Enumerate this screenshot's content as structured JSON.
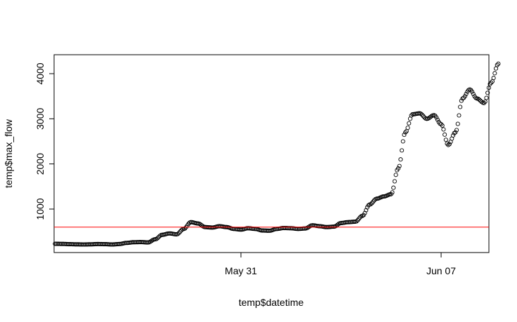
{
  "chart_data": {
    "type": "scatter",
    "xlabel": "temp$datetime",
    "ylabel": "temp$max_flow",
    "x_axis": {
      "type": "date",
      "range": [
        "2024-05-24T00:00",
        "2024-06-09T00:00"
      ]
    },
    "y_axis": {
      "range": [
        0,
        4400
      ]
    },
    "x_ticks": [
      {
        "date": "2024-05-31T00:00",
        "label": "May 31"
      },
      {
        "date": "2024-06-07T00:00",
        "label": "Jun 07"
      }
    ],
    "y_ticks": [
      {
        "value": 1000,
        "label": "1000"
      },
      {
        "value": 2000,
        "label": "2000"
      },
      {
        "value": 3000,
        "label": "3000"
      },
      {
        "value": 4000,
        "label": "4000"
      }
    ],
    "reference_line": {
      "y": 600,
      "color": "#ff0000"
    },
    "point_style": {
      "shape": "open-circle",
      "color": "#000000"
    },
    "grid": false,
    "points": [
      {
        "x": "2024-05-24T12:00",
        "y": 230
      },
      {
        "x": "2024-05-24T18:00",
        "y": 228
      },
      {
        "x": "2024-05-25T00:00",
        "y": 222
      },
      {
        "x": "2024-05-25T06:00",
        "y": 218
      },
      {
        "x": "2024-05-25T12:00",
        "y": 215
      },
      {
        "x": "2024-05-25T18:00",
        "y": 218
      },
      {
        "x": "2024-05-26T00:00",
        "y": 225
      },
      {
        "x": "2024-05-26T06:00",
        "y": 222
      },
      {
        "x": "2024-05-26T12:00",
        "y": 215
      },
      {
        "x": "2024-05-26T18:00",
        "y": 225
      },
      {
        "x": "2024-05-27T00:00",
        "y": 250
      },
      {
        "x": "2024-05-27T06:00",
        "y": 265
      },
      {
        "x": "2024-05-27T12:00",
        "y": 268
      },
      {
        "x": "2024-05-27T18:00",
        "y": 260
      },
      {
        "x": "2024-05-28T00:00",
        "y": 330
      },
      {
        "x": "2024-05-28T06:00",
        "y": 430
      },
      {
        "x": "2024-05-28T12:00",
        "y": 460
      },
      {
        "x": "2024-05-28T18:00",
        "y": 440
      },
      {
        "x": "2024-05-29T00:00",
        "y": 560
      },
      {
        "x": "2024-05-29T06:00",
        "y": 710
      },
      {
        "x": "2024-05-29T12:00",
        "y": 680
      },
      {
        "x": "2024-05-29T18:00",
        "y": 600
      },
      {
        "x": "2024-05-30T00:00",
        "y": 590
      },
      {
        "x": "2024-05-30T06:00",
        "y": 620
      },
      {
        "x": "2024-05-30T12:00",
        "y": 600
      },
      {
        "x": "2024-05-30T18:00",
        "y": 560
      },
      {
        "x": "2024-05-31T00:00",
        "y": 545
      },
      {
        "x": "2024-05-31T06:00",
        "y": 575
      },
      {
        "x": "2024-05-31T12:00",
        "y": 560
      },
      {
        "x": "2024-05-31T18:00",
        "y": 525
      },
      {
        "x": "2024-06-01T00:00",
        "y": 520
      },
      {
        "x": "2024-06-01T06:00",
        "y": 560
      },
      {
        "x": "2024-06-01T12:00",
        "y": 580
      },
      {
        "x": "2024-06-01T18:00",
        "y": 575
      },
      {
        "x": "2024-06-02T00:00",
        "y": 560
      },
      {
        "x": "2024-06-02T06:00",
        "y": 570
      },
      {
        "x": "2024-06-02T12:00",
        "y": 640
      },
      {
        "x": "2024-06-02T18:00",
        "y": 620
      },
      {
        "x": "2024-06-03T00:00",
        "y": 600
      },
      {
        "x": "2024-06-03T06:00",
        "y": 610
      },
      {
        "x": "2024-06-03T12:00",
        "y": 690
      },
      {
        "x": "2024-06-03T18:00",
        "y": 710
      },
      {
        "x": "2024-06-04T00:00",
        "y": 720
      },
      {
        "x": "2024-06-04T06:00",
        "y": 850
      },
      {
        "x": "2024-06-04T12:00",
        "y": 1100
      },
      {
        "x": "2024-06-04T18:00",
        "y": 1230
      },
      {
        "x": "2024-06-05T00:00",
        "y": 1280
      },
      {
        "x": "2024-06-05T06:00",
        "y": 1330
      },
      {
        "x": "2024-06-05T12:00",
        "y": 1900
      },
      {
        "x": "2024-06-05T18:00",
        "y": 2700
      },
      {
        "x": "2024-06-06T00:00",
        "y": 3100
      },
      {
        "x": "2024-06-06T06:00",
        "y": 3120
      },
      {
        "x": "2024-06-06T12:00",
        "y": 3000
      },
      {
        "x": "2024-06-06T18:00",
        "y": 3080
      },
      {
        "x": "2024-06-07T00:00",
        "y": 2880
      },
      {
        "x": "2024-06-07T06:00",
        "y": 2420
      },
      {
        "x": "2024-06-07T12:00",
        "y": 2700
      },
      {
        "x": "2024-06-07T18:00",
        "y": 3450
      },
      {
        "x": "2024-06-08T00:00",
        "y": 3650
      },
      {
        "x": "2024-06-08T06:00",
        "y": 3450
      },
      {
        "x": "2024-06-08T12:00",
        "y": 3350
      },
      {
        "x": "2024-06-08T18:00",
        "y": 3800
      },
      {
        "x": "2024-06-09T00:00",
        "y": 4220
      }
    ]
  }
}
